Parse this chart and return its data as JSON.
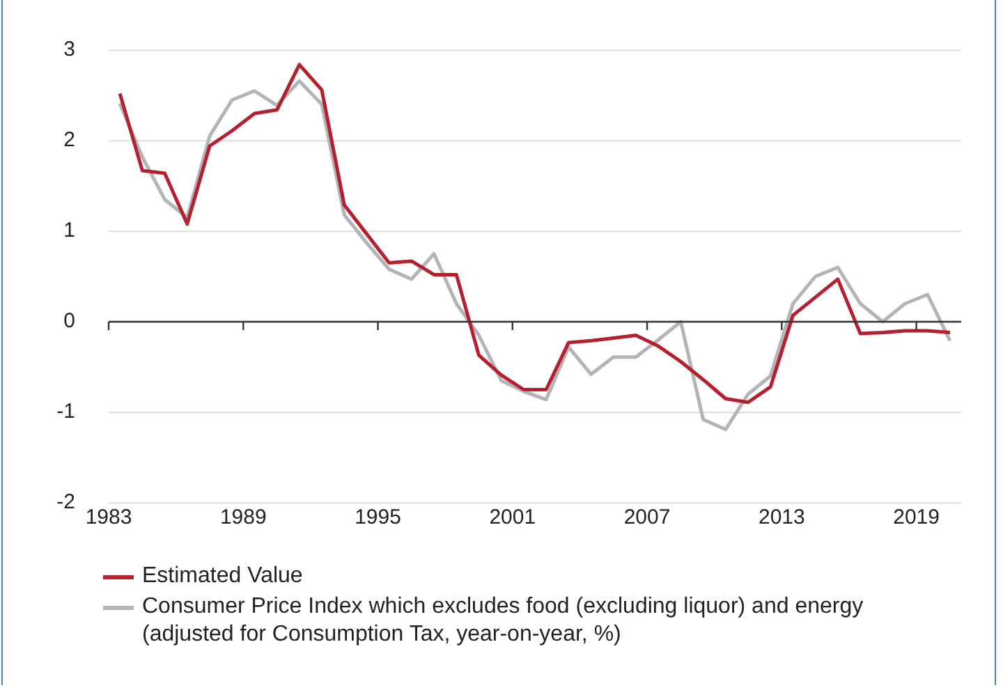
{
  "chart_data": {
    "type": "line",
    "x": [
      1983.5,
      1984.5,
      1985.5,
      1986.5,
      1987.5,
      1988.5,
      1989.5,
      1990.5,
      1991.5,
      1992.5,
      1993.5,
      1994.5,
      1995.5,
      1996.5,
      1997.5,
      1998.5,
      1999.5,
      2000.5,
      2001.5,
      2002.5,
      2003.5,
      2004.5,
      2005.5,
      2006.5,
      2007.5,
      2008.5,
      2009.5,
      2010.5,
      2011.5,
      2012.5,
      2013.5,
      2014.5,
      2015.5,
      2016.5,
      2017.5,
      2018.5,
      2019.5,
      2020.5
    ],
    "series": [
      {
        "name": "Estimated Value",
        "color": "#b5202e",
        "values": [
          2.52,
          1.67,
          1.64,
          1.08,
          1.94,
          2.11,
          2.3,
          2.34,
          2.84,
          2.56,
          1.29,
          0.97,
          0.65,
          0.67,
          0.52,
          0.52,
          -0.37,
          -0.59,
          -0.75,
          -0.75,
          -0.23,
          -0.21,
          -0.18,
          -0.15,
          -0.27,
          -0.44,
          -0.64,
          -0.85,
          -0.89,
          -0.72,
          0.07,
          0.27,
          0.47,
          -0.13,
          -0.12,
          -0.1,
          -0.1,
          -0.12
        ]
      },
      {
        "name": "Consumer Price Index which excludes food (excluding liquor) and energy (adjusted for Consumption Tax, year-on-year, %)",
        "color": "#b4b4b8",
        "values": [
          2.41,
          1.82,
          1.35,
          1.15,
          2.05,
          2.45,
          2.55,
          2.39,
          2.66,
          2.4,
          1.18,
          0.87,
          0.58,
          0.47,
          0.75,
          0.2,
          -0.15,
          -0.65,
          -0.77,
          -0.86,
          -0.28,
          -0.58,
          -0.39,
          -0.39,
          -0.2,
          0.0,
          -1.08,
          -1.19,
          -0.8,
          -0.6,
          0.2,
          0.5,
          0.6,
          0.2,
          0.0,
          0.2,
          0.3,
          -0.21
        ]
      }
    ],
    "xlim": [
      1983,
      2021
    ],
    "xticks": [
      1983,
      1989,
      1995,
      2001,
      2007,
      2013,
      2019
    ],
    "ylim": [
      -2,
      3
    ],
    "yticks": [
      -2,
      -1,
      0,
      1,
      2,
      3
    ],
    "grid": "y",
    "legend": "bottom",
    "marker": "none",
    "line_style": "solid"
  }
}
